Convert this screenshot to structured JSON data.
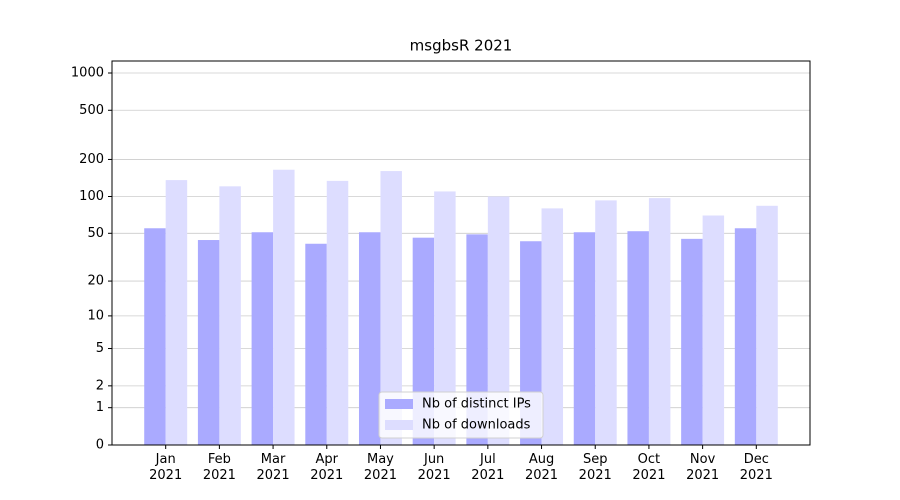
{
  "chart_data": {
    "type": "bar",
    "title": "msgbsR 2021",
    "categories": [
      "Jan\n2021",
      "Feb\n2021",
      "Mar\n2021",
      "Apr\n2021",
      "May\n2021",
      "Jun\n2021",
      "Jul\n2021",
      "Aug\n2021",
      "Sep\n2021",
      "Oct\n2021",
      "Nov\n2021",
      "Dec\n2021"
    ],
    "series": [
      {
        "name": "Nb of distinct IPs",
        "color": "#aaaaff",
        "values": [
          55,
          44,
          51,
          41,
          51,
          46,
          49,
          43,
          51,
          52,
          45,
          55
        ]
      },
      {
        "name": "Nb of downloads",
        "color": "#ddddff",
        "values": [
          136,
          121,
          165,
          134,
          161,
          110,
          100,
          80,
          93,
          97,
          70,
          84
        ]
      }
    ],
    "yscale": "log1p",
    "ylim": [
      0,
      1250
    ],
    "yticks": [
      0,
      1,
      2,
      5,
      10,
      20,
      50,
      100,
      200,
      500,
      1000
    ],
    "grid": true,
    "legend": "lower center"
  }
}
